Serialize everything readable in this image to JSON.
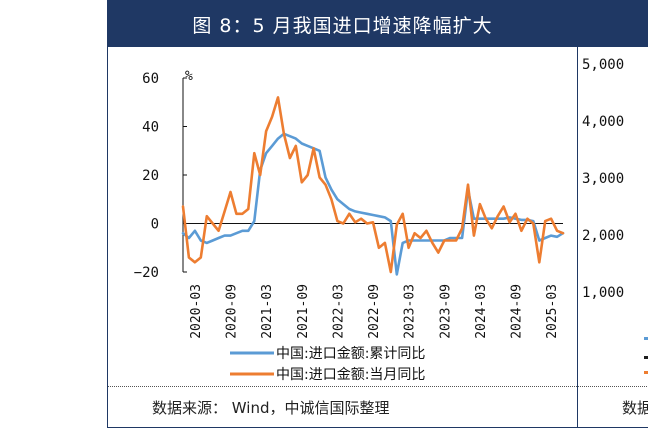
{
  "left_panel": {
    "title": "图 8：5 月我国进口增速降幅扩大",
    "source": "数据来源： Wind，中诚信国际整理"
  },
  "right_panel": {
    "source_partial": "数据"
  },
  "chart_data": {
    "type": "line",
    "title": "图 8：5 月我国进口增速降幅扩大",
    "ylabel": "%",
    "ylim": [
      -20,
      60
    ],
    "yticks": [
      "60",
      "40",
      "20",
      "0",
      "−20"
    ],
    "x_tick_labels": [
      "2020-03",
      "2020-09",
      "2021-03",
      "2021-09",
      "2022-03",
      "2022-09",
      "2023-03",
      "2023-09",
      "2024-03",
      "2024-09",
      "2025-03"
    ],
    "x_start": "2020-01",
    "grid": false,
    "legend_placement": "bottom",
    "series": [
      {
        "name": "中国:进口金额:累计同比",
        "color": "#5b9bd5",
        "values": [
          -4,
          -6,
          -3,
          -7,
          -8,
          -7,
          -6,
          -5,
          -5,
          -4,
          -3,
          -3,
          1,
          22,
          29,
          32,
          35,
          37,
          36,
          35,
          33,
          32,
          31,
          30,
          19,
          14,
          10,
          8,
          6,
          5,
          4.5,
          4,
          3.5,
          3,
          2.5,
          1,
          -21,
          -8,
          -7,
          -7,
          -7,
          -7,
          -7,
          -7,
          -7,
          -6,
          -6,
          -6,
          14,
          2,
          2,
          2,
          2,
          2,
          2,
          2.5,
          2,
          1.5,
          1.5,
          1,
          -7,
          -6,
          -5,
          -5.5,
          -4
        ]
      },
      {
        "name": "中国:进口金额:当月同比",
        "color": "#ed7d31",
        "values": [
          7,
          -14,
          -16,
          -14,
          3,
          0,
          -3,
          5,
          13,
          4,
          4,
          6,
          29,
          20,
          38,
          44,
          52,
          37,
          27,
          32,
          17,
          20,
          31,
          19,
          16,
          10,
          1,
          0,
          4,
          0.5,
          2,
          0,
          0.5,
          -10,
          -8,
          -20,
          -0.5,
          4,
          -10,
          -4,
          -6,
          -3,
          -8,
          -12,
          -7,
          -7,
          -7,
          -2,
          16,
          -5,
          8,
          2,
          -2,
          3,
          7,
          0.5,
          4,
          -3,
          2,
          0,
          -16,
          1,
          2,
          -3,
          -4
        ]
      }
    ]
  },
  "right_chart": {
    "yticks": [
      "5,000",
      "4,000",
      "3,000",
      "2,000",
      "1,000"
    ]
  }
}
